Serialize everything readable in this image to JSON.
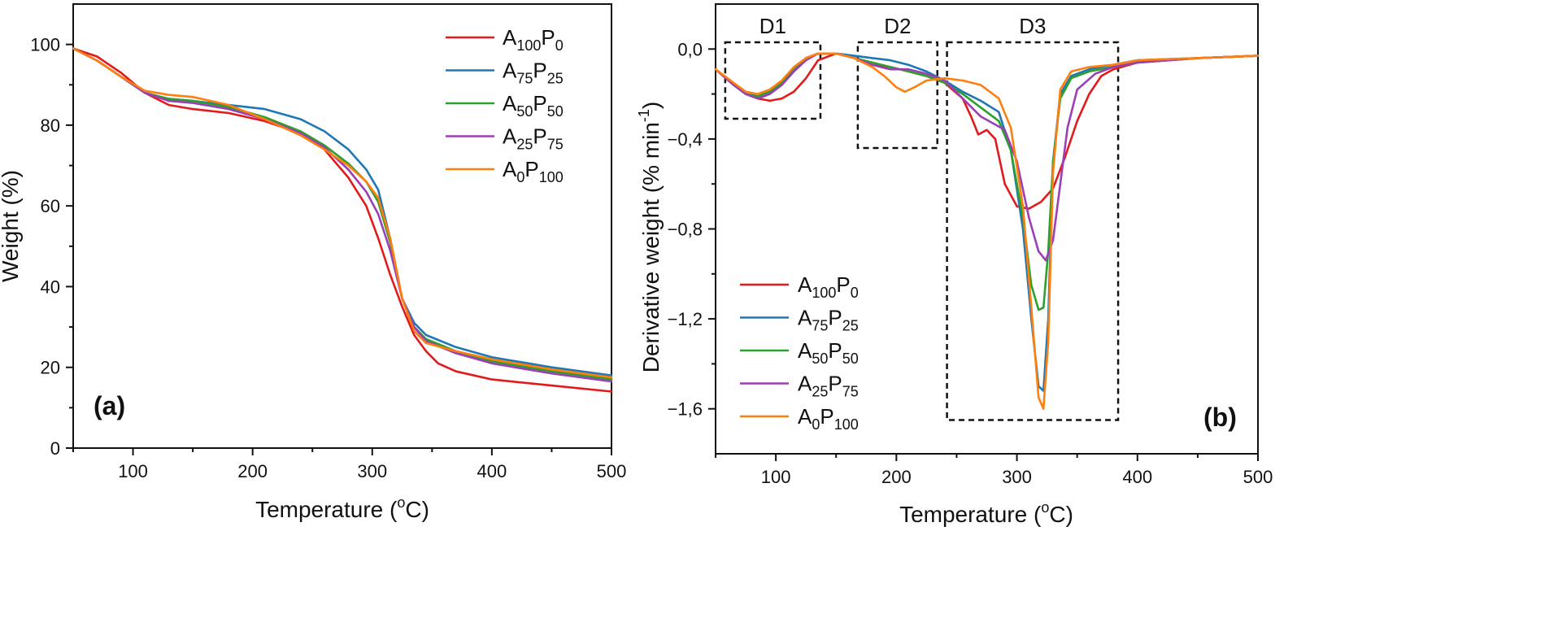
{
  "chart_data": [
    {
      "type": "line",
      "panel_label": "(a)",
      "xlabel": "Temperature (",
      "xlabel_sup": "o",
      "xlabel_end": "C)",
      "ylabel": "Weight (%)",
      "xlim": [
        50,
        500
      ],
      "ylim": [
        0,
        110
      ],
      "xticks": [
        100,
        200,
        300,
        400,
        500
      ],
      "yticks": [
        0,
        20,
        40,
        60,
        80,
        100
      ],
      "ytick_labels": [
        "0",
        "20",
        "40",
        "60",
        "80",
        "100"
      ],
      "legend": [
        {
          "base": "A",
          "sub1": "100",
          "mid": "P",
          "sub2": "0",
          "color": "#e31a1c"
        },
        {
          "base": "A",
          "sub1": "75",
          "mid": "P",
          "sub2": "25",
          "color": "#1f77b4"
        },
        {
          "base": "A",
          "sub1": "50",
          "mid": "P",
          "sub2": "50",
          "color": "#2ca02c"
        },
        {
          "base": "A",
          "sub1": "25",
          "mid": "P",
          "sub2": "75",
          "color": "#9b3fb5"
        },
        {
          "base": "A",
          "sub1": "0",
          "mid": "P",
          "sub2": "100",
          "color": "#ff7f0e"
        }
      ],
      "series": [
        {
          "name": "A100P0",
          "color": "#e31a1c",
          "x": [
            50,
            70,
            90,
            110,
            130,
            150,
            180,
            210,
            240,
            260,
            280,
            295,
            305,
            315,
            325,
            335,
            345,
            355,
            370,
            400,
            450,
            500
          ],
          "y": [
            99,
            97,
            93,
            88,
            85,
            84,
            83,
            81,
            78,
            74,
            67,
            60,
            52,
            43,
            35,
            28,
            24,
            21,
            19,
            17,
            15.5,
            14
          ]
        },
        {
          "name": "A75P25",
          "color": "#1f77b4",
          "x": [
            50,
            70,
            90,
            110,
            130,
            150,
            180,
            210,
            240,
            260,
            280,
            295,
            305,
            315,
            325,
            335,
            345,
            370,
            400,
            450,
            500
          ],
          "y": [
            99,
            96,
            92,
            88,
            86.5,
            86,
            85,
            84,
            81.5,
            78.5,
            74,
            69,
            64,
            52,
            37,
            31,
            28,
            25,
            22.5,
            20,
            18
          ]
        },
        {
          "name": "A50P50",
          "color": "#2ca02c",
          "x": [
            50,
            70,
            90,
            110,
            130,
            150,
            180,
            210,
            240,
            260,
            280,
            295,
            305,
            315,
            325,
            335,
            345,
            370,
            400,
            450,
            500
          ],
          "y": [
            99,
            96,
            92,
            88,
            86.5,
            86,
            84.5,
            82,
            78.5,
            75,
            70.5,
            66,
            61,
            51,
            37,
            30,
            27,
            24,
            21.5,
            19,
            17
          ]
        },
        {
          "name": "A25P75",
          "color": "#9b3fb5",
          "x": [
            50,
            70,
            90,
            110,
            130,
            150,
            180,
            210,
            240,
            260,
            280,
            295,
            305,
            315,
            325,
            335,
            345,
            370,
            400,
            450,
            500
          ],
          "y": [
            99,
            96,
            92,
            88,
            86,
            85.5,
            84,
            81.5,
            78,
            74.5,
            69,
            63.5,
            58,
            49,
            37,
            30,
            26.5,
            23.5,
            21,
            18.5,
            16.5
          ]
        },
        {
          "name": "A0P100",
          "color": "#ff7f0e",
          "x": [
            50,
            70,
            90,
            110,
            130,
            150,
            180,
            210,
            240,
            260,
            280,
            295,
            305,
            315,
            325,
            335,
            345,
            370,
            400,
            450,
            500
          ],
          "y": [
            99,
            96,
            92,
            88.5,
            87.5,
            87,
            85,
            81.5,
            77.5,
            74,
            70,
            66,
            62,
            52,
            37,
            29,
            26,
            24,
            22,
            19.5,
            17.5
          ]
        }
      ]
    },
    {
      "type": "line",
      "panel_label": "(b)",
      "xlabel": "Temperature (",
      "xlabel_sup": "o",
      "xlabel_end": "C)",
      "ylabel": "Derivative weight (% min",
      "ylabel_sup": "-1",
      "ylabel_end": ")",
      "xlim": [
        50,
        500
      ],
      "ylim": [
        -1.8,
        0.2
      ],
      "xticks": [
        100,
        200,
        300,
        400,
        500
      ],
      "yticks": [
        0.0,
        -0.4,
        -0.8,
        -1.2,
        -1.6
      ],
      "ytick_labels": [
        "0,0",
        "−0,4",
        "−0,8",
        "−1,2",
        "−1,6"
      ],
      "regions": [
        {
          "label": "D1",
          "x_range": [
            58,
            137
          ],
          "y_range": [
            0.03,
            -0.31
          ]
        },
        {
          "label": "D2",
          "x_range": [
            168,
            234
          ],
          "y_range": [
            0.03,
            -0.44
          ]
        },
        {
          "label": "D3",
          "x_range": [
            242,
            384
          ],
          "y_range": [
            0.03,
            -1.65
          ]
        }
      ],
      "legend": [
        {
          "base": "A",
          "sub1": "100",
          "mid": "P",
          "sub2": "0",
          "color": "#e31a1c"
        },
        {
          "base": "A",
          "sub1": "75",
          "mid": "P",
          "sub2": "25",
          "color": "#1f77b4"
        },
        {
          "base": "A",
          "sub1": "50",
          "mid": "P",
          "sub2": "50",
          "color": "#2ca02c"
        },
        {
          "base": "A",
          "sub1": "25",
          "mid": "P",
          "sub2": "75",
          "color": "#9b3fb5"
        },
        {
          "base": "A",
          "sub1": "0",
          "mid": "P",
          "sub2": "100",
          "color": "#ff7f0e"
        }
      ],
      "series": [
        {
          "name": "A100P0",
          "color": "#e31a1c",
          "x": [
            50,
            65,
            75,
            85,
            95,
            105,
            115,
            125,
            135,
            150,
            165,
            180,
            195,
            210,
            225,
            240,
            255,
            262,
            268,
            275,
            282,
            290,
            300,
            310,
            320,
            330,
            340,
            350,
            360,
            370,
            380,
            400,
            450,
            500
          ],
          "y": [
            -0.09,
            -0.16,
            -0.2,
            -0.22,
            -0.23,
            -0.22,
            -0.19,
            -0.13,
            -0.05,
            -0.02,
            -0.04,
            -0.07,
            -0.08,
            -0.1,
            -0.12,
            -0.15,
            -0.22,
            -0.3,
            -0.38,
            -0.36,
            -0.4,
            -0.6,
            -0.7,
            -0.71,
            -0.68,
            -0.62,
            -0.48,
            -0.32,
            -0.2,
            -0.12,
            -0.09,
            -0.06,
            -0.04,
            -0.03
          ]
        },
        {
          "name": "A75P25",
          "color": "#1f77b4",
          "x": [
            50,
            65,
            75,
            85,
            95,
            105,
            115,
            125,
            135,
            150,
            165,
            180,
            195,
            210,
            225,
            240,
            255,
            270,
            285,
            295,
            305,
            312,
            318,
            322,
            326,
            330,
            336,
            345,
            360,
            380,
            400,
            450,
            500
          ],
          "y": [
            -0.09,
            -0.16,
            -0.2,
            -0.21,
            -0.19,
            -0.15,
            -0.09,
            -0.04,
            -0.02,
            -0.02,
            -0.03,
            -0.04,
            -0.05,
            -0.07,
            -0.1,
            -0.14,
            -0.19,
            -0.23,
            -0.28,
            -0.45,
            -0.8,
            -1.2,
            -1.5,
            -1.52,
            -1.2,
            -0.5,
            -0.2,
            -0.12,
            -0.09,
            -0.07,
            -0.05,
            -0.04,
            -0.03
          ]
        },
        {
          "name": "A50P50",
          "color": "#2ca02c",
          "x": [
            50,
            65,
            75,
            85,
            95,
            105,
            115,
            125,
            135,
            150,
            165,
            180,
            195,
            210,
            225,
            240,
            255,
            270,
            285,
            295,
            305,
            312,
            318,
            322,
            326,
            330,
            336,
            345,
            360,
            380,
            400,
            450,
            500
          ],
          "y": [
            -0.09,
            -0.16,
            -0.2,
            -0.21,
            -0.19,
            -0.15,
            -0.09,
            -0.04,
            -0.02,
            -0.02,
            -0.04,
            -0.06,
            -0.08,
            -0.1,
            -0.12,
            -0.15,
            -0.2,
            -0.26,
            -0.32,
            -0.45,
            -0.75,
            -1.05,
            -1.16,
            -1.15,
            -0.9,
            -0.5,
            -0.22,
            -0.13,
            -0.1,
            -0.08,
            -0.06,
            -0.04,
            -0.03
          ]
        },
        {
          "name": "A25P75",
          "color": "#9b3fb5",
          "x": [
            50,
            65,
            75,
            85,
            95,
            105,
            115,
            125,
            135,
            150,
            165,
            180,
            195,
            210,
            225,
            240,
            255,
            270,
            280,
            290,
            300,
            310,
            318,
            324,
            330,
            336,
            342,
            350,
            365,
            380,
            400,
            450,
            500
          ],
          "y": [
            -0.09,
            -0.16,
            -0.2,
            -0.22,
            -0.2,
            -0.16,
            -0.1,
            -0.05,
            -0.02,
            -0.02,
            -0.04,
            -0.07,
            -0.09,
            -0.09,
            -0.11,
            -0.14,
            -0.22,
            -0.3,
            -0.33,
            -0.36,
            -0.5,
            -0.75,
            -0.9,
            -0.94,
            -0.85,
            -0.6,
            -0.35,
            -0.18,
            -0.11,
            -0.08,
            -0.06,
            -0.04,
            -0.03
          ]
        },
        {
          "name": "A0P100",
          "color": "#ff7f0e",
          "x": [
            50,
            65,
            75,
            85,
            95,
            105,
            115,
            125,
            135,
            150,
            165,
            180,
            190,
            200,
            207,
            215,
            225,
            240,
            255,
            270,
            285,
            295,
            305,
            312,
            318,
            322,
            326,
            330,
            336,
            345,
            360,
            380,
            400,
            450,
            500
          ],
          "y": [
            -0.09,
            -0.15,
            -0.19,
            -0.2,
            -0.18,
            -0.14,
            -0.08,
            -0.04,
            -0.02,
            -0.02,
            -0.04,
            -0.08,
            -0.12,
            -0.17,
            -0.19,
            -0.17,
            -0.14,
            -0.13,
            -0.14,
            -0.16,
            -0.22,
            -0.35,
            -0.7,
            -1.15,
            -1.55,
            -1.6,
            -1.3,
            -0.55,
            -0.18,
            -0.1,
            -0.08,
            -0.07,
            -0.05,
            -0.04,
            -0.03
          ]
        }
      ]
    }
  ]
}
